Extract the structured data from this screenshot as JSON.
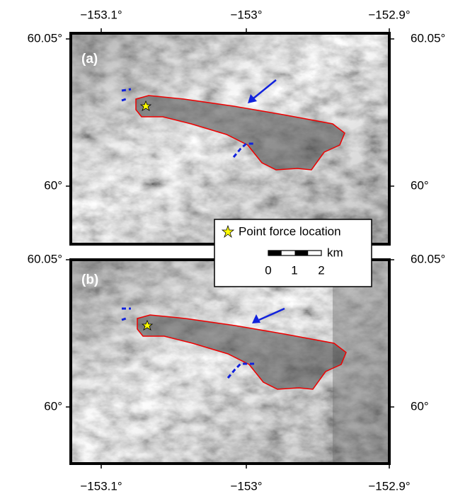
{
  "axes": {
    "top_labels": [
      "−153.1°",
      "−153°",
      "−152.9°"
    ],
    "bottom_labels": [
      "−153.1°",
      "−153°",
      "−152.9°"
    ],
    "panel_a_lat_labels": [
      "60.05°",
      "60°"
    ],
    "panel_b_lat_labels": [
      "60.05°",
      "60°"
    ]
  },
  "panels": [
    {
      "label": "(a)"
    },
    {
      "label": "(b)"
    }
  ],
  "legend": {
    "entry": "Point force location",
    "scale_ticks": [
      "0",
      "1",
      "2"
    ],
    "scale_unit": "km"
  }
}
